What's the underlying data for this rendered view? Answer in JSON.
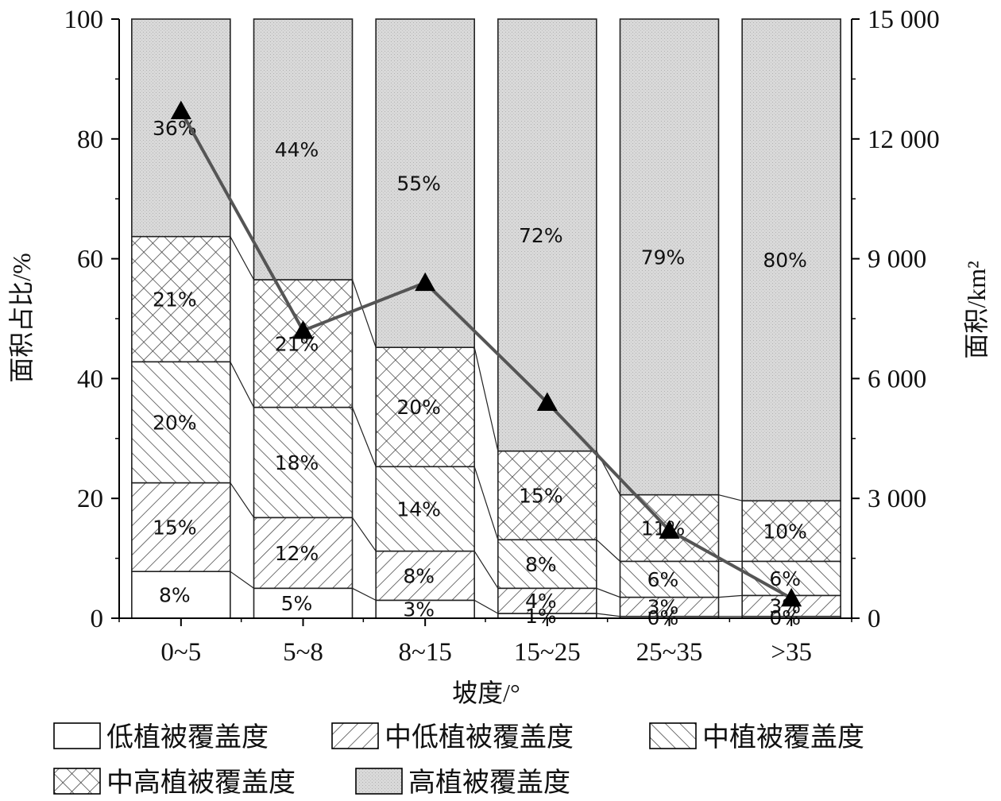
{
  "chart_data": {
    "type": "bar",
    "subtype": "stacked-100-percent-with-line",
    "categories": [
      "0~5",
      "5~8",
      "8~15",
      "15~25",
      "25~35",
      ">35"
    ],
    "xlabel": "坡度/°",
    "ylabel_left": "面积占比/%",
    "ylabel_right": "面积/km²",
    "ylim_left": [
      0,
      100
    ],
    "yticks_left": [
      "0",
      "20",
      "40",
      "60",
      "80",
      "100"
    ],
    "ylim_right": [
      0,
      15000
    ],
    "yticks_right": [
      "0",
      "3 000",
      "6 000",
      "9 000",
      "12 000",
      "15 000"
    ],
    "grid": false,
    "legend_position": "bottom",
    "series": [
      {
        "name": "低植被覆盖度",
        "pattern": "none",
        "values": [
          7.8,
          5.0,
          3.0,
          0.8,
          0.3,
          0.3
        ],
        "labels": [
          "8%",
          "5%",
          "3%",
          "1%",
          "0%",
          "0%"
        ]
      },
      {
        "name": "中低植被覆盖度",
        "pattern": "diagonal-forward",
        "values": [
          14.8,
          11.8,
          8.2,
          4.2,
          3.2,
          3.5
        ],
        "labels": [
          "15%",
          "12%",
          "8%",
          "4%",
          "3%",
          "3%"
        ]
      },
      {
        "name": "中植被覆盖度",
        "pattern": "diagonal-back",
        "values": [
          20.2,
          18.4,
          14.1,
          8.1,
          6.0,
          5.7
        ],
        "labels": [
          "20%",
          "18%",
          "14%",
          "8%",
          "6%",
          "6%"
        ]
      },
      {
        "name": "中高植被覆盖度",
        "pattern": "crosshatch",
        "values": [
          20.9,
          21.3,
          19.9,
          14.8,
          11.1,
          10.1
        ],
        "labels": [
          "21%",
          "21%",
          "20%",
          "15%",
          "11%",
          "10%"
        ]
      },
      {
        "name": "高植被覆盖度",
        "pattern": "dotted-gray",
        "values": [
          36.3,
          43.5,
          54.8,
          72.1,
          79.4,
          80.4
        ],
        "labels": [
          "36%",
          "44%",
          "55%",
          "72%",
          "79%",
          "80%"
        ]
      }
    ],
    "line_series": {
      "axis": "right",
      "marker": "triangle",
      "values": [
        12700,
        7200,
        8400,
        5400,
        2200,
        500
      ]
    }
  },
  "colors": {
    "bar_outline": "#222222",
    "high_fill": "#d9d9d9",
    "line": "#555555",
    "marker": "#000000"
  }
}
